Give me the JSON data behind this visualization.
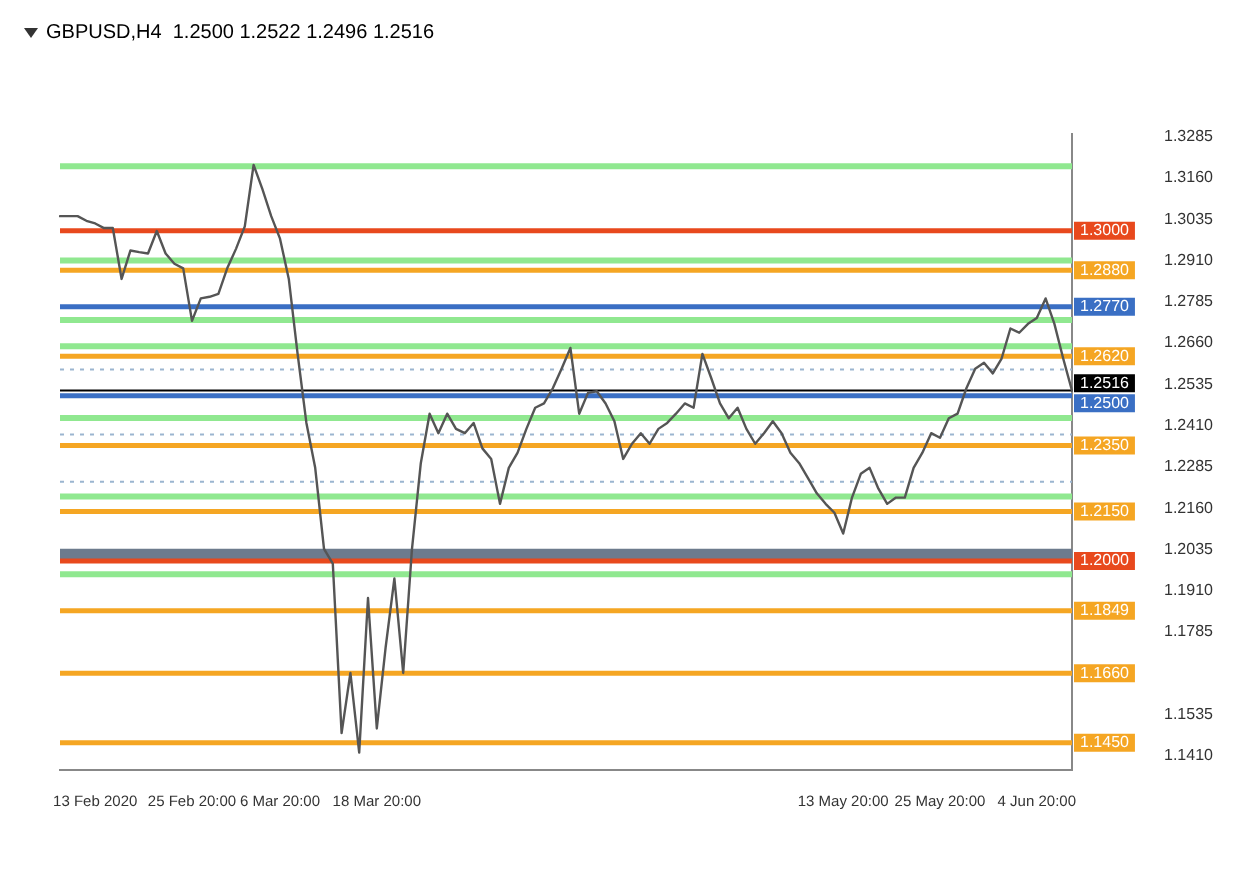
{
  "chart_data": {
    "type": "line",
    "title": "GBPUSD,H4  1.2500 1.2522 1.2496 1.2516",
    "categories": [
      null,
      null,
      null,
      null,
      "13 Feb 2020",
      null,
      null,
      null,
      null,
      null,
      null,
      null,
      null,
      null,
      null,
      "25 Feb 20:00",
      null,
      null,
      null,
      null,
      null,
      null,
      null,
      null,
      null,
      "6 Mar 20:00",
      null,
      null,
      null,
      null,
      null,
      null,
      null,
      null,
      null,
      null,
      "18 Mar 20:00",
      null,
      null,
      null,
      null,
      null,
      null,
      null,
      null,
      null,
      null,
      null,
      null,
      null,
      null,
      null,
      null,
      null,
      null,
      null,
      null,
      null,
      null,
      null,
      null,
      null,
      null,
      null,
      null,
      null,
      null,
      null,
      null,
      null,
      null,
      null,
      null,
      null,
      null,
      null,
      null,
      null,
      null,
      null,
      null,
      null,
      null,
      null,
      null,
      null,
      null,
      null,
      null,
      "13 May 20:00",
      null,
      null,
      null,
      null,
      null,
      null,
      null,
      null,
      null,
      null,
      "25 May 20:00",
      null,
      null,
      null,
      null,
      null,
      null,
      null,
      null,
      null,
      null,
      "4 Jun 20:00",
      null,
      null,
      null,
      null
    ],
    "series": [
      {
        "color": "#555555",
        "values": [
          1.3044,
          1.3044,
          1.3044,
          1.303,
          1.3022,
          1.3008,
          1.3008,
          1.2854,
          1.294,
          1.2935,
          1.2931,
          1.2999,
          1.2931,
          1.29,
          1.2886,
          1.2727,
          1.2795,
          1.28,
          1.2809,
          1.2886,
          1.2945,
          1.3013,
          1.3199,
          1.3126,
          1.3044,
          1.2976,
          1.2854,
          1.2627,
          1.2418,
          1.2282,
          1.2037,
          1.1992,
          1.1479,
          1.1661,
          1.142,
          1.1888,
          1.1493,
          1.1738,
          1.1947,
          1.1661,
          1.2037,
          1.2296,
          1.2446,
          1.2387,
          1.2446,
          1.24,
          1.2387,
          1.2418,
          1.2341,
          1.2309,
          1.2173,
          1.2282,
          1.2328,
          1.24,
          1.2464,
          1.2477,
          1.2523,
          1.2582,
          1.2645,
          1.2446,
          1.2509,
          1.2514,
          1.2477,
          1.2423,
          1.2309,
          1.2355,
          1.2387,
          1.2355,
          1.24,
          1.2418,
          1.2446,
          1.2477,
          1.2464,
          1.2627,
          1.2554,
          1.2477,
          1.2432,
          1.2464,
          1.24,
          1.2355,
          1.2387,
          1.2423,
          1.2387,
          1.2328,
          1.2296,
          1.2251,
          1.2205,
          1.2173,
          1.2146,
          1.2083,
          1.2192,
          1.2264,
          1.2282,
          1.2219,
          1.2173,
          1.2192,
          1.2192,
          1.2282,
          1.2328,
          1.2387,
          1.2373,
          1.2432,
          1.2446,
          1.2523,
          1.2582,
          1.26,
          1.2568,
          1.2613,
          1.2704,
          1.2691,
          1.2718,
          1.2736,
          1.2795,
          1.2718,
          1.2613,
          1.2516
        ]
      }
    ],
    "ylim": [
      1.1366,
      1.3294
    ],
    "yticks": [
      1.3285,
      {
        "value": 1.316,
        "label": "1.3160"
      },
      1.3035,
      {
        "value": 1.291,
        "label": "1.2910"
      },
      1.2785,
      {
        "value": 1.266,
        "label": "1.2660"
      },
      1.2535,
      {
        "value": 1.241,
        "label": "1.2410"
      },
      1.2285,
      {
        "value": 1.216,
        "label": "1.2160"
      },
      1.2035,
      {
        "value": 1.191,
        "label": "1.1910"
      },
      1.1785,
      1.1535,
      {
        "value": 1.141,
        "label": "1.1410"
      }
    ],
    "marker": "none",
    "line_style": "solid",
    "grid": false,
    "legend": false,
    "bands": [
      {
        "axis": "y",
        "from": 1.2005,
        "to": 1.2037,
        "color": "#6d7b8d"
      }
    ],
    "ref_lines": [
      {
        "axis": "y",
        "value": 1.3195,
        "color": "#90e890"
      },
      {
        "axis": "y",
        "value": 1.3,
        "label": "1.3000",
        "color": "#e8491d"
      },
      {
        "axis": "y",
        "value": 1.291,
        "color": "#90e890"
      },
      {
        "axis": "y",
        "value": 1.288,
        "label": "1.2880",
        "color": "#f5a623"
      },
      {
        "axis": "y",
        "value": 1.277,
        "label": "1.2770",
        "color": "#3a6fc4"
      },
      {
        "axis": "y",
        "value": 1.273,
        "color": "#90e890"
      },
      {
        "axis": "y",
        "value": 1.265,
        "color": "#90e890"
      },
      {
        "axis": "y",
        "value": 1.262,
        "label": "1.2620",
        "color": "#f5a623"
      },
      {
        "axis": "y",
        "value": 1.258,
        "color": "#9bb5d0",
        "line_style": "dotted"
      },
      {
        "axis": "y",
        "value": 1.2516,
        "label": "1.2516",
        "color": "#000000"
      },
      {
        "axis": "y",
        "value": 1.25,
        "label": "1.2500",
        "color": "#3a6fc4"
      },
      {
        "axis": "y",
        "value": 1.2433,
        "color": "#90e890"
      },
      {
        "axis": "y",
        "value": 1.2383,
        "color": "#9bb5d0",
        "line_style": "dotted"
      },
      {
        "axis": "y",
        "value": 1.235,
        "label": "1.2350",
        "color": "#f5a623"
      },
      {
        "axis": "y",
        "value": 1.224,
        "color": "#9bb5d0",
        "line_style": "dotted"
      },
      {
        "axis": "y",
        "value": 1.2195,
        "color": "#90e890"
      },
      {
        "axis": "y",
        "value": 1.215,
        "label": "1.2150",
        "color": "#f5a623"
      },
      {
        "axis": "y",
        "value": 1.2,
        "label": "1.2000",
        "color": "#e8491d"
      },
      {
        "axis": "y",
        "value": 1.196,
        "color": "#90e890"
      },
      {
        "axis": "y",
        "value": 1.1849,
        "label": "1.1849",
        "color": "#f5a623"
      },
      {
        "axis": "y",
        "value": 1.166,
        "label": "1.1660",
        "color": "#f5a623"
      },
      {
        "axis": "y",
        "value": 1.145,
        "label": "1.1450",
        "color": "#f5a623"
      }
    ]
  }
}
